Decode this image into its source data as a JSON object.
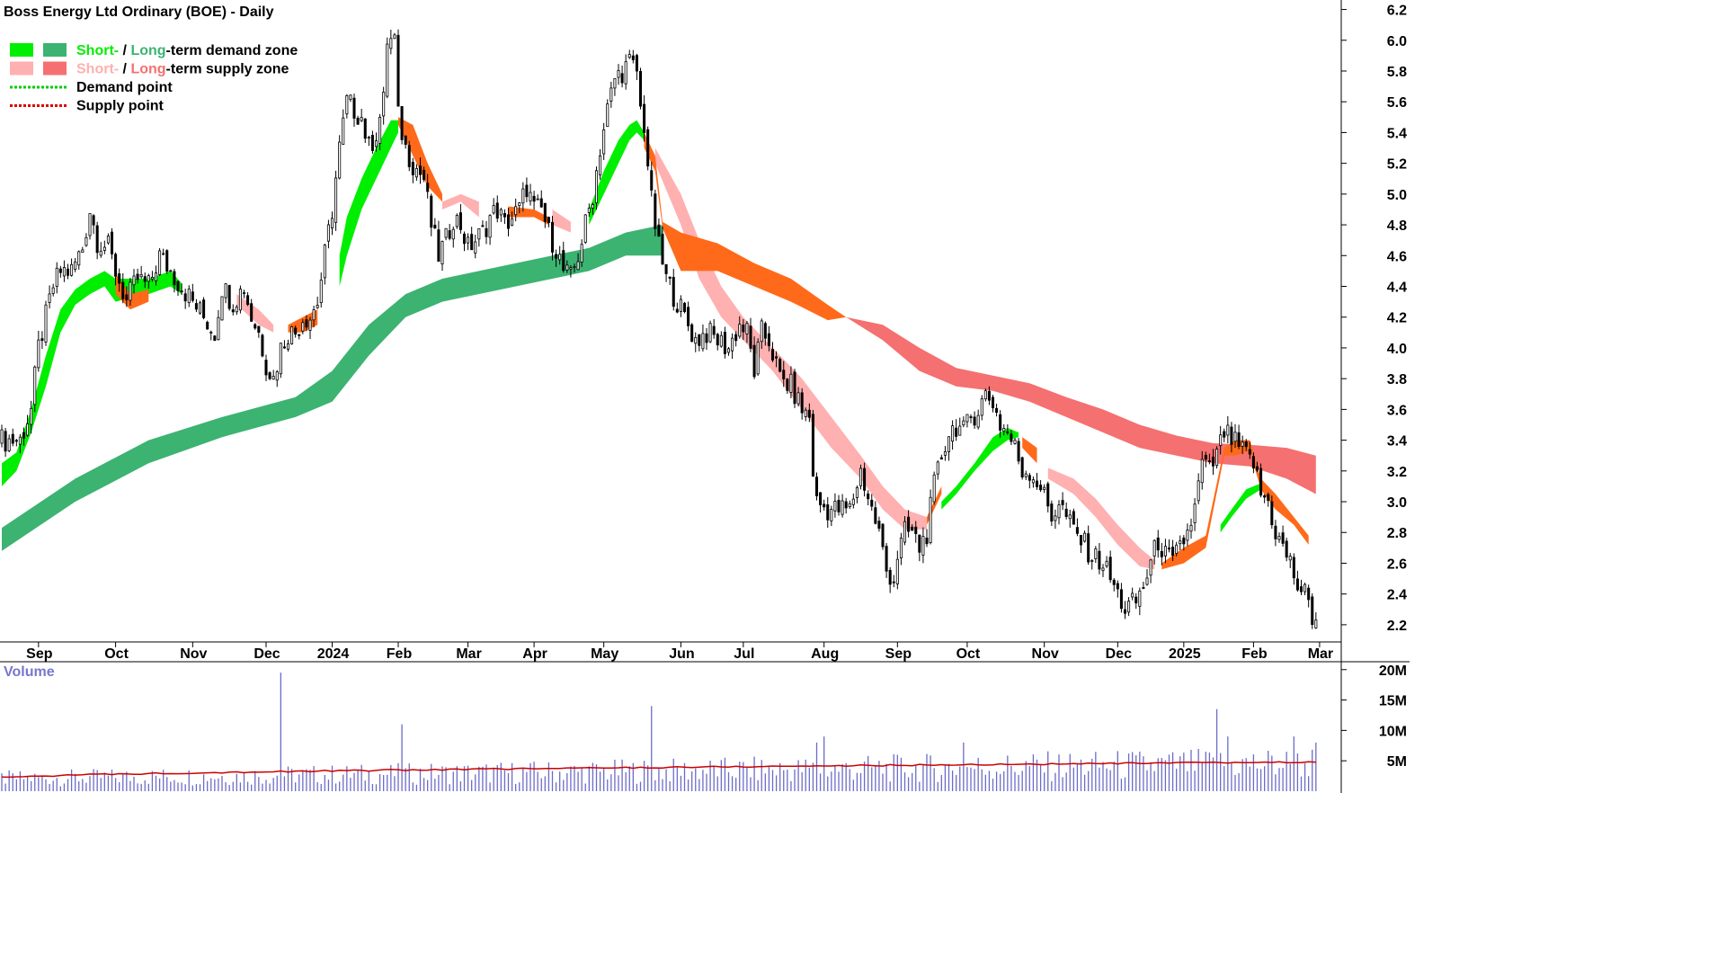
{
  "colors": {
    "short_demand": "#00ee00",
    "long_demand": "#3cb371",
    "short_supply": "#ffb0b0",
    "long_supply": "#f57070",
    "overlap": "#ff6a1a",
    "demand_point": "#00cc00",
    "supply_point": "#dd0000",
    "volume_bar": "#6b6bc8",
    "volume_avg": "#cc0000",
    "volume_label": "#7777cc"
  },
  "chart_data": {
    "type": "candlestick",
    "title": "Boss Energy Ltd Ordinary (BOE) - Daily",
    "legend": [
      {
        "parts": [
          {
            "text": "Short-",
            "color": "short_demand"
          },
          {
            "text": " / ",
            "color": "black"
          },
          {
            "text": "Long",
            "color": "long_demand"
          },
          {
            "text": "-term demand zone",
            "color": "black"
          }
        ],
        "swatches": [
          "short_demand",
          "long_demand"
        ]
      },
      {
        "parts": [
          {
            "text": "Short-",
            "color": "short_supply"
          },
          {
            "text": " / ",
            "color": "black"
          },
          {
            "text": "Long",
            "color": "long_supply"
          },
          {
            "text": "-term supply zone",
            "color": "black"
          }
        ],
        "swatches": [
          "short_supply",
          "long_supply"
        ]
      },
      {
        "parts": [
          {
            "text": "Demand point",
            "color": "black"
          }
        ],
        "dotted": "demand_point"
      },
      {
        "parts": [
          {
            "text": "Supply point",
            "color": "black"
          }
        ],
        "dotted": "supply_point"
      }
    ],
    "legend_placement": "top-left",
    "y_axis": {
      "side": "right",
      "ylim": [
        2.1,
        6.25
      ],
      "ticks": [
        "2.2",
        "2.4",
        "2.6",
        "2.8",
        "3.0",
        "3.2",
        "3.4",
        "3.6",
        "3.8",
        "4.0",
        "4.2",
        "4.4",
        "4.6",
        "4.8",
        "5.0",
        "5.2",
        "5.4",
        "5.6",
        "5.8",
        "6.0",
        "6.2"
      ]
    },
    "x_axis": {
      "xlim": [
        0,
        360
      ],
      "months": [
        {
          "label": "Sep",
          "x": 10
        },
        {
          "label": "Oct",
          "x": 31
        },
        {
          "label": "Nov",
          "x": 52
        },
        {
          "label": "Dec",
          "x": 72
        },
        {
          "label": "2024",
          "x": 90
        },
        {
          "label": "Feb",
          "x": 108
        },
        {
          "label": "Mar",
          "x": 127
        },
        {
          "label": "Apr",
          "x": 145
        },
        {
          "label": "May",
          "x": 164
        },
        {
          "label": "Jun",
          "x": 185
        },
        {
          "label": "Jul",
          "x": 202
        },
        {
          "label": "Aug",
          "x": 224
        },
        {
          "label": "Sep",
          "x": 244
        },
        {
          "label": "Oct",
          "x": 263
        },
        {
          "label": "Nov",
          "x": 284
        },
        {
          "label": "Dec",
          "x": 304
        },
        {
          "label": "2025",
          "x": 322
        },
        {
          "label": "Feb",
          "x": 341
        },
        {
          "label": "Mar",
          "x": 359
        }
      ]
    },
    "price_path": [
      [
        0,
        3.4
      ],
      [
        5,
        3.4
      ],
      [
        8,
        3.6
      ],
      [
        10,
        4.0
      ],
      [
        12,
        4.2
      ],
      [
        14,
        4.4
      ],
      [
        16,
        4.5
      ],
      [
        19,
        4.5
      ],
      [
        22,
        4.65
      ],
      [
        24,
        4.9
      ],
      [
        26,
        4.7
      ],
      [
        29,
        4.65
      ],
      [
        31,
        4.5
      ],
      [
        34,
        4.3
      ],
      [
        37,
        4.45
      ],
      [
        40,
        4.4
      ],
      [
        43,
        4.6
      ],
      [
        46,
        4.5
      ],
      [
        49,
        4.4
      ],
      [
        52,
        4.3
      ],
      [
        55,
        4.2
      ],
      [
        58,
        4.1
      ],
      [
        60,
        4.4
      ],
      [
        63,
        4.3
      ],
      [
        66,
        4.4
      ],
      [
        68,
        4.2
      ],
      [
        70,
        4.1
      ],
      [
        72,
        3.9
      ],
      [
        74,
        3.8
      ],
      [
        76,
        4.0
      ],
      [
        78,
        4.1
      ],
      [
        80,
        4.1
      ],
      [
        82,
        4.2
      ],
      [
        84,
        4.2
      ],
      [
        86,
        4.3
      ],
      [
        88,
        4.6
      ],
      [
        90,
        4.9
      ],
      [
        92,
        5.3
      ],
      [
        94,
        5.6
      ],
      [
        96,
        5.55
      ],
      [
        98,
        5.5
      ],
      [
        100,
        5.3
      ],
      [
        102,
        5.4
      ],
      [
        104,
        5.6
      ],
      [
        105,
        6.0
      ],
      [
        107,
        6.0
      ],
      [
        108,
        5.5
      ],
      [
        110,
        5.3
      ],
      [
        112,
        5.2
      ],
      [
        115,
        5.1
      ],
      [
        117,
        4.8
      ],
      [
        119,
        4.6
      ],
      [
        121,
        4.7
      ],
      [
        123,
        4.85
      ],
      [
        125,
        4.8
      ],
      [
        127,
        4.65
      ],
      [
        129,
        4.7
      ],
      [
        131,
        4.75
      ],
      [
        133,
        4.85
      ],
      [
        135,
        4.9
      ],
      [
        137,
        4.8
      ],
      [
        139,
        4.85
      ],
      [
        141,
        4.9
      ],
      [
        143,
        5.05
      ],
      [
        145,
        4.9
      ],
      [
        147,
        4.9
      ],
      [
        149,
        4.75
      ],
      [
        151,
        4.65
      ],
      [
        153,
        4.5
      ],
      [
        155,
        4.45
      ],
      [
        157,
        4.6
      ],
      [
        159,
        4.8
      ],
      [
        161,
        5.0
      ],
      [
        163,
        5.3
      ],
      [
        165,
        5.55
      ],
      [
        167,
        5.75
      ],
      [
        169,
        5.8
      ],
      [
        171,
        5.85
      ],
      [
        173,
        5.8
      ],
      [
        174,
        5.55
      ],
      [
        175,
        5.45
      ],
      [
        177,
        4.95
      ],
      [
        179,
        4.65
      ],
      [
        181,
        4.45
      ],
      [
        183,
        4.35
      ],
      [
        186,
        4.2
      ],
      [
        189,
        4.05
      ],
      [
        192,
        4.1
      ],
      [
        195,
        4.05
      ],
      [
        198,
        4.0
      ],
      [
        201,
        4.15
      ],
      [
        203,
        4.1
      ],
      [
        205,
        3.85
      ],
      [
        207,
        4.1
      ],
      [
        209,
        4.05
      ],
      [
        212,
        3.8
      ],
      [
        215,
        3.75
      ],
      [
        218,
        3.6
      ],
      [
        220,
        3.55
      ],
      [
        221,
        3.2
      ],
      [
        222,
        3.0
      ],
      [
        225,
        2.95
      ],
      [
        228,
        2.95
      ],
      [
        231,
        2.95
      ],
      [
        234,
        3.2
      ],
      [
        237,
        2.95
      ],
      [
        239,
        2.8
      ],
      [
        241,
        2.55
      ],
      [
        243,
        2.5
      ],
      [
        244,
        2.65
      ],
      [
        246,
        2.8
      ],
      [
        248,
        2.8
      ],
      [
        250,
        2.7
      ],
      [
        252,
        2.8
      ],
      [
        254,
        3.1
      ],
      [
        256,
        3.3
      ],
      [
        258,
        3.45
      ],
      [
        260,
        3.5
      ],
      [
        262,
        3.45
      ],
      [
        264,
        3.55
      ],
      [
        266,
        3.6
      ],
      [
        268,
        3.7
      ],
      [
        270,
        3.65
      ],
      [
        272,
        3.5
      ],
      [
        274,
        3.45
      ],
      [
        276,
        3.35
      ],
      [
        278,
        3.2
      ],
      [
        280,
        3.2
      ],
      [
        283,
        3.1
      ],
      [
        286,
        2.9
      ],
      [
        288,
        3.0
      ],
      [
        291,
        2.85
      ],
      [
        294,
        2.75
      ],
      [
        297,
        2.65
      ],
      [
        300,
        2.6
      ],
      [
        302,
        2.5
      ],
      [
        304,
        2.4
      ],
      [
        306,
        2.3
      ],
      [
        309,
        2.35
      ],
      [
        311,
        2.45
      ],
      [
        313,
        2.6
      ],
      [
        315,
        2.75
      ],
      [
        317,
        2.65
      ],
      [
        319,
        2.6
      ],
      [
        321,
        2.7
      ],
      [
        323,
        2.8
      ],
      [
        325,
        2.95
      ],
      [
        327,
        3.25
      ],
      [
        329,
        3.2
      ],
      [
        331,
        3.3
      ],
      [
        333,
        3.45
      ],
      [
        335,
        3.4
      ],
      [
        337,
        3.35
      ],
      [
        339,
        3.3
      ],
      [
        341,
        3.25
      ],
      [
        343,
        3.05
      ],
      [
        345,
        3.0
      ],
      [
        347,
        2.8
      ],
      [
        349,
        2.7
      ],
      [
        351,
        2.6
      ],
      [
        353,
        2.45
      ],
      [
        355,
        2.4
      ],
      [
        357,
        2.25
      ],
      [
        358,
        2.25
      ]
    ],
    "zones": {
      "short_demand": [
        [
          0,
          3.1,
          3.25
        ],
        [
          4,
          3.2,
          3.32
        ],
        [
          8,
          3.45,
          3.6
        ],
        [
          12,
          3.75,
          3.95
        ],
        [
          16,
          4.1,
          4.25
        ],
        [
          20,
          4.28,
          4.38
        ],
        [
          24,
          4.35,
          4.45
        ],
        [
          28,
          4.4,
          4.5
        ],
        [
          31,
          4.3,
          4.45
        ],
        [
          34,
          4.32,
          4.45
        ],
        [
          40,
          4.35,
          4.45
        ],
        [
          46,
          4.4,
          4.5
        ],
        [
          49,
          4.35,
          4.42
        ],
        [
          92,
          4.4,
          4.6
        ],
        [
          94,
          4.6,
          4.85
        ],
        [
          98,
          4.9,
          5.1
        ],
        [
          102,
          5.1,
          5.3
        ],
        [
          106,
          5.3,
          5.48
        ],
        [
          108,
          5.4,
          5.48
        ],
        [
          160,
          4.8,
          4.9
        ],
        [
          164,
          5.0,
          5.15
        ],
        [
          168,
          5.2,
          5.35
        ],
        [
          171,
          5.35,
          5.45
        ],
        [
          173,
          5.4,
          5.48
        ],
        [
          175,
          5.35,
          5.4
        ],
        [
          256,
          2.95,
          3.0
        ],
        [
          260,
          3.05,
          3.1
        ],
        [
          265,
          3.2,
          3.25
        ],
        [
          270,
          3.33,
          3.42
        ],
        [
          274,
          3.4,
          3.48
        ],
        [
          277,
          3.42,
          3.45
        ],
        [
          332,
          2.8,
          2.85
        ],
        [
          335,
          2.9,
          2.95
        ],
        [
          339,
          3.02,
          3.08
        ],
        [
          343,
          3.08,
          3.12
        ],
        [
          345,
          3.07,
          3.1
        ]
      ],
      "long_demand": [
        [
          0,
          2.68,
          2.83
        ],
        [
          20,
          3.0,
          3.15
        ],
        [
          40,
          3.25,
          3.4
        ],
        [
          60,
          3.42,
          3.55
        ],
        [
          80,
          3.55,
          3.68
        ],
        [
          90,
          3.65,
          3.85
        ],
        [
          100,
          3.95,
          4.15
        ],
        [
          110,
          4.2,
          4.35
        ],
        [
          120,
          4.3,
          4.45
        ],
        [
          140,
          4.4,
          4.55
        ],
        [
          160,
          4.5,
          4.65
        ],
        [
          170,
          4.6,
          4.75
        ],
        [
          180,
          4.6,
          4.8
        ]
      ],
      "short_supply": [
        [
          64,
          4.28,
          4.35
        ],
        [
          70,
          4.15,
          4.25
        ],
        [
          74,
          4.1,
          4.15
        ],
        [
          120,
          4.9,
          4.95
        ],
        [
          125,
          4.95,
          5.0
        ],
        [
          130,
          4.85,
          4.95
        ],
        [
          150,
          4.8,
          4.9
        ],
        [
          155,
          4.75,
          4.82
        ],
        [
          178,
          5.2,
          5.3
        ],
        [
          185,
          4.8,
          5.0
        ],
        [
          190,
          4.45,
          4.7
        ],
        [
          196,
          4.2,
          4.4
        ],
        [
          202,
          4.05,
          4.2
        ],
        [
          210,
          3.85,
          4.0
        ],
        [
          218,
          3.6,
          3.8
        ],
        [
          226,
          3.35,
          3.55
        ],
        [
          234,
          3.15,
          3.3
        ],
        [
          240,
          2.95,
          3.1
        ],
        [
          246,
          2.82,
          2.95
        ],
        [
          252,
          2.82,
          2.9
        ],
        [
          285,
          3.15,
          3.22
        ],
        [
          292,
          3.05,
          3.15
        ],
        [
          298,
          2.9,
          3.02
        ],
        [
          304,
          2.72,
          2.85
        ],
        [
          310,
          2.58,
          2.7
        ],
        [
          314,
          2.56,
          2.62
        ]
      ],
      "long_supply": [
        [
          230,
          4.2,
          4.2
        ],
        [
          240,
          4.05,
          4.15
        ],
        [
          250,
          3.85,
          4.0
        ],
        [
          260,
          3.75,
          3.87
        ],
        [
          270,
          3.72,
          3.82
        ],
        [
          280,
          3.65,
          3.77
        ],
        [
          290,
          3.55,
          3.68
        ],
        [
          300,
          3.45,
          3.6
        ],
        [
          310,
          3.35,
          3.5
        ],
        [
          320,
          3.3,
          3.43
        ],
        [
          330,
          3.25,
          3.38
        ],
        [
          340,
          3.23,
          3.37
        ],
        [
          350,
          3.15,
          3.35
        ],
        [
          358,
          3.05,
          3.3
        ]
      ],
      "overlap": [
        [
          31,
          4.35,
          4.48
        ],
        [
          35,
          4.25,
          4.35
        ],
        [
          40,
          4.3,
          4.38
        ],
        [
          78,
          4.1,
          4.15
        ],
        [
          82,
          4.1,
          4.2
        ],
        [
          86,
          4.15,
          4.25
        ],
        [
          108,
          5.45,
          5.5
        ],
        [
          112,
          5.25,
          5.45
        ],
        [
          116,
          5.05,
          5.2
        ],
        [
          120,
          4.95,
          5.0
        ],
        [
          138,
          4.85,
          4.92
        ],
        [
          145,
          4.85,
          4.9
        ],
        [
          149,
          4.8,
          4.85
        ],
        [
          175,
          5.3,
          5.4
        ],
        [
          178,
          5.15,
          5.25
        ],
        [
          180,
          4.78,
          4.82
        ],
        [
          185,
          4.5,
          4.75
        ],
        [
          195,
          4.5,
          4.68
        ],
        [
          205,
          4.4,
          4.55
        ],
        [
          215,
          4.3,
          4.45
        ],
        [
          225,
          4.18,
          4.28
        ],
        [
          230,
          4.2,
          4.2
        ],
        [
          252,
          2.85,
          2.9
        ],
        [
          256,
          3.05,
          3.1
        ],
        [
          278,
          3.35,
          3.42
        ],
        [
          282,
          3.25,
          3.35
        ],
        [
          316,
          2.56,
          2.6
        ],
        [
          322,
          2.6,
          2.7
        ],
        [
          328,
          2.7,
          2.78
        ],
        [
          333,
          3.3,
          3.35
        ],
        [
          336,
          3.3,
          3.4
        ],
        [
          340,
          3.33,
          3.4
        ],
        [
          343,
          3.08,
          3.15
        ],
        [
          347,
          2.95,
          3.05
        ],
        [
          352,
          2.85,
          2.9
        ],
        [
          356,
          2.72,
          2.78
        ]
      ]
    },
    "volume": {
      "label": "Volume",
      "ylim": [
        0,
        21
      ],
      "ticks": [
        "5M",
        "10M",
        "15M",
        "20M"
      ],
      "avg_start": 2.2,
      "avg_end": 4.8,
      "spikes": [
        [
          76,
          19.5
        ],
        [
          109,
          11
        ],
        [
          177,
          14
        ],
        [
          222,
          8
        ],
        [
          224,
          9
        ],
        [
          262,
          8
        ],
        [
          331,
          13.5
        ],
        [
          334,
          9
        ],
        [
          352,
          9
        ],
        [
          358,
          8
        ]
      ]
    }
  }
}
